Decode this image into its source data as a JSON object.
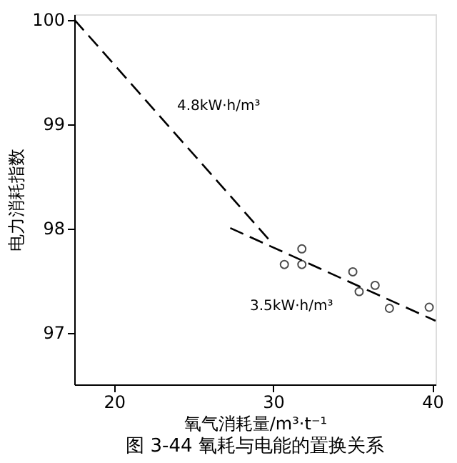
{
  "chart_data": {
    "type": "line",
    "title": "图 3-44   氧耗与电能的置换关系",
    "xlabel": "氧气消耗量/m³·t⁻¹",
    "ylabel": "电力消耗指数",
    "series": [
      {
        "color": "#000000",
        "line_style": "dashed",
        "x": [
          17.5,
          29.9
        ],
        "values": [
          100.0,
          97.86
        ]
      },
      {
        "color": "#000000",
        "line_style": "dashed",
        "x": [
          27.3,
          40.2
        ],
        "values": [
          98.0,
          97.11
        ]
      },
      {
        "type": "scatter",
        "color": "#000000",
        "marker": "circle",
        "x": [
          30.7,
          31.8,
          31.8,
          35.0,
          35.4,
          36.4,
          37.3,
          39.8
        ],
        "values": [
          97.65,
          97.8,
          97.65,
          97.58,
          97.39,
          97.45,
          97.23,
          97.24
        ]
      }
    ],
    "annotations": [
      "4.8kW·h/m³",
      "3.5kW·h/m³"
    ],
    "xlim": [
      17.5,
      40.2
    ],
    "ylim": [
      96.5,
      100.05
    ],
    "xticks": [
      20,
      30,
      40
    ],
    "yticks": [
      97,
      98,
      99,
      100
    ],
    "grid": false
  }
}
